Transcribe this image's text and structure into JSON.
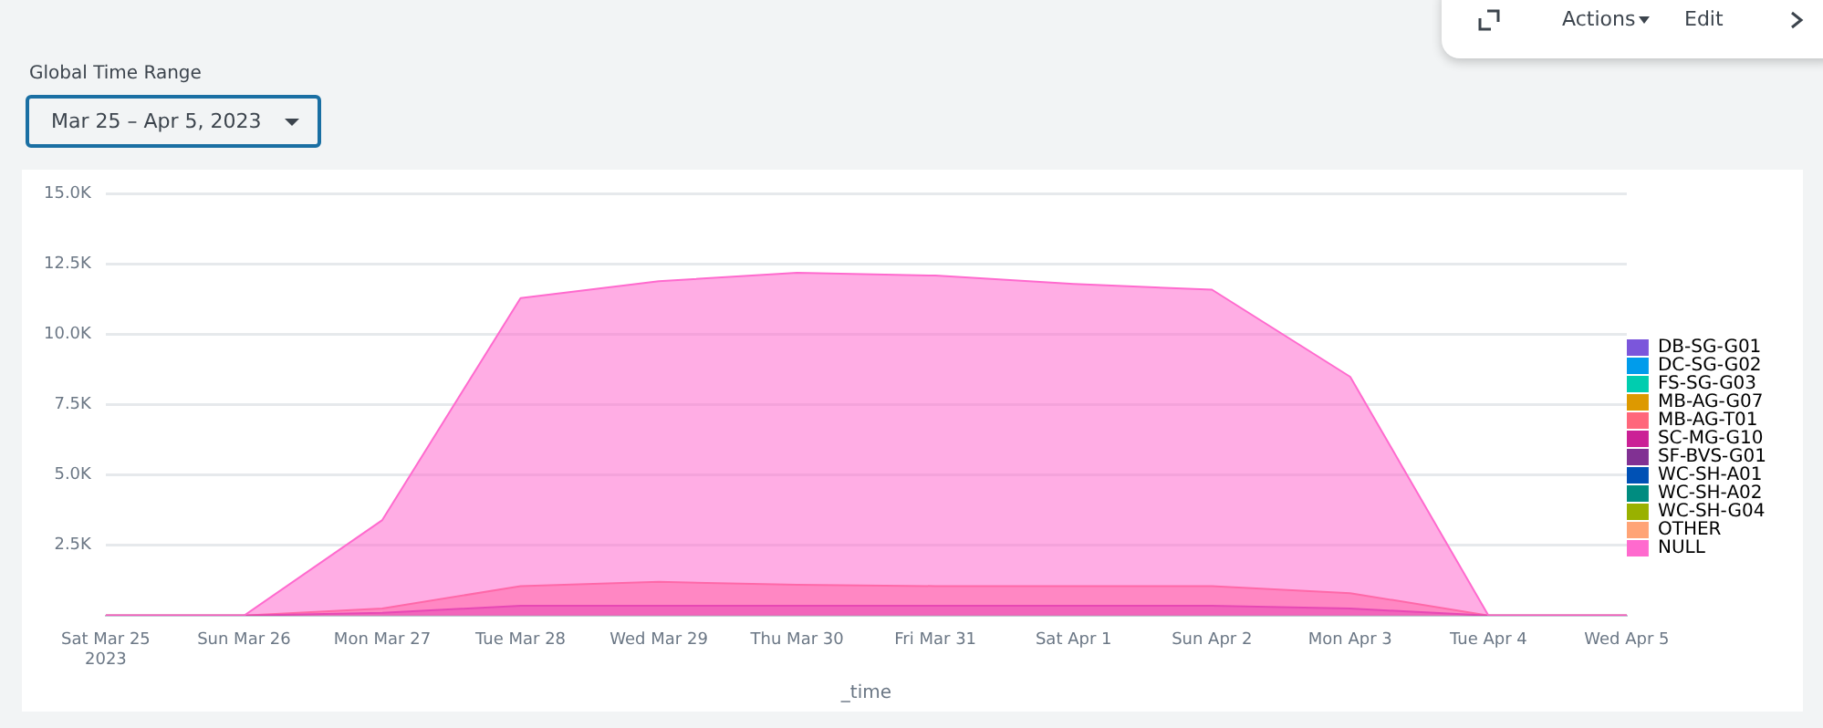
{
  "chart_data": {
    "type": "area",
    "xlabel": "_time",
    "annotations": [
      "Global Time Range",
      "Mar 25 – Apr 5, 2023",
      "Actions",
      "Edit"
    ],
    "categories": [
      "Sat Mar 25\n2023",
      "Sun Mar 26",
      "Mon Mar 27",
      "Tue Mar 28",
      "Wed Mar 29",
      "Thu Mar 30",
      "Fri Mar 31",
      "Sat Apr 1",
      "Sun Apr 2",
      "Mon Apr 3",
      "Tue Apr 4",
      "Wed Apr 5"
    ],
    "ylim": [
      0,
      15000
    ],
    "yticks": [
      {
        "value": 0,
        "label": null
      },
      {
        "value": 2500,
        "label": "2.5K"
      },
      {
        "value": 5000,
        "label": "5.0K"
      },
      {
        "value": 7500,
        "label": "7.5K"
      },
      {
        "value": 10000,
        "label": "10.0K"
      },
      {
        "value": 12500,
        "label": "12.5K"
      },
      {
        "value": 15000,
        "label": "15.0K"
      }
    ],
    "grid": "y",
    "legend": "right",
    "series": [
      {
        "name": "DB-SG-G01",
        "color": "#7b56db",
        "values": [
          null,
          null,
          null,
          null,
          null,
          null,
          null,
          null,
          null,
          null,
          null,
          null
        ]
      },
      {
        "name": "DC-SG-G02",
        "color": "#009ceb",
        "values": [
          null,
          null,
          null,
          null,
          null,
          null,
          null,
          null,
          null,
          null,
          null,
          null
        ]
      },
      {
        "name": "FS-SG-G03",
        "color": "#00cdaf",
        "values": [
          null,
          null,
          null,
          null,
          null,
          null,
          null,
          null,
          null,
          null,
          null,
          null
        ]
      },
      {
        "name": "MB-AG-G07",
        "color": "#dd9900",
        "values": [
          null,
          null,
          null,
          null,
          null,
          null,
          null,
          null,
          null,
          null,
          null,
          null
        ]
      },
      {
        "name": "MB-AG-T01",
        "color": "#ff677b",
        "values": [
          0,
          0,
          250,
          1050,
          1200,
          1100,
          1050,
          1050,
          1050,
          800,
          0,
          0
        ]
      },
      {
        "name": "SC-MG-G10",
        "color": "#cb2196",
        "values": [
          0,
          0,
          100,
          350,
          350,
          350,
          350,
          350,
          350,
          250,
          0,
          0
        ]
      },
      {
        "name": "SF-BVS-G01",
        "color": "#813193",
        "values": [
          null,
          null,
          null,
          null,
          null,
          null,
          null,
          null,
          null,
          null,
          null,
          null
        ]
      },
      {
        "name": "WC-SH-A01",
        "color": "#0051b5",
        "values": [
          null,
          null,
          null,
          null,
          null,
          null,
          null,
          null,
          null,
          null,
          null,
          null
        ]
      },
      {
        "name": "WC-SH-A02",
        "color": "#008c80",
        "values": [
          null,
          null,
          null,
          null,
          null,
          null,
          null,
          null,
          null,
          null,
          null,
          null
        ]
      },
      {
        "name": "WC-SH-G04",
        "color": "#99b100",
        "values": [
          null,
          null,
          null,
          null,
          null,
          null,
          null,
          null,
          null,
          null,
          null,
          null
        ]
      },
      {
        "name": "OTHER",
        "color": "#ffa476",
        "values": [
          null,
          null,
          null,
          null,
          null,
          null,
          null,
          null,
          null,
          null,
          null,
          null
        ]
      },
      {
        "name": "NULL",
        "color": "#ff6ace",
        "values": [
          0,
          0,
          3400,
          11300,
          11900,
          12200,
          12100,
          11800,
          11600,
          8500,
          0,
          0
        ]
      }
    ]
  }
}
